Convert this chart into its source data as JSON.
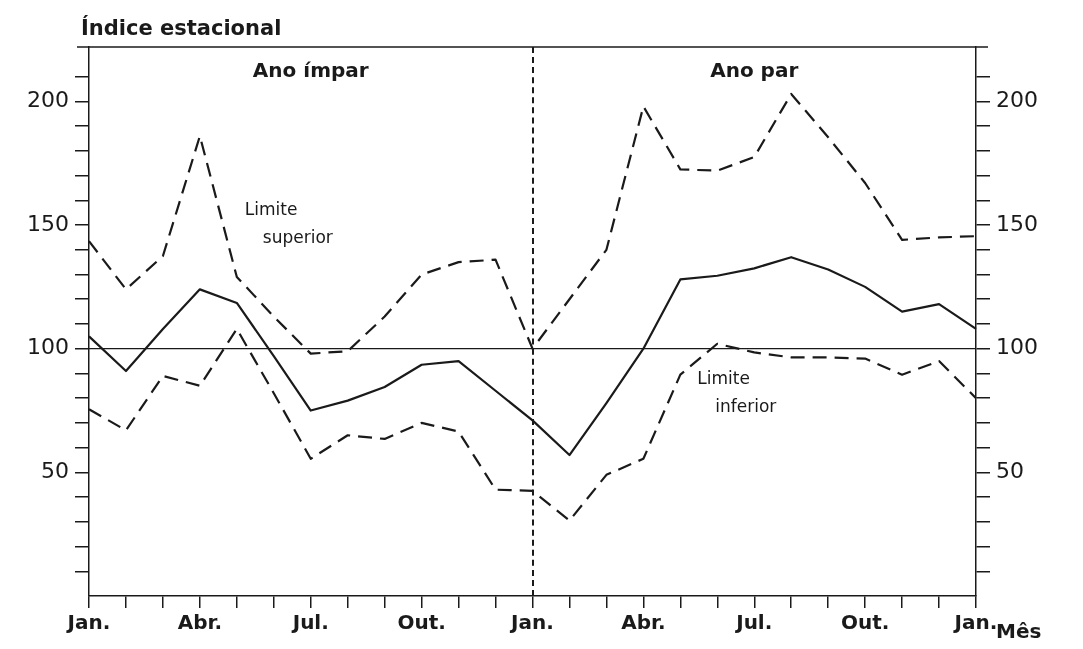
{
  "chart_data": {
    "type": "line",
    "ylabel": "Índice estacional",
    "xlabel": "Mês",
    "categories": [
      "Jan.",
      null,
      null,
      "Abr.",
      null,
      null,
      "Jul.",
      null,
      null,
      "Out.",
      null,
      null,
      "Jan.",
      null,
      null,
      "Abr.",
      null,
      null,
      "Jul.",
      null,
      null,
      "Out.",
      null,
      null,
      "Jan."
    ],
    "series": [
      {
        "color": "#1a1a1a",
        "line_style": "solid",
        "values": [
          105,
          91,
          108,
          124,
          118.5,
          97,
          75,
          79,
          84.5,
          93.5,
          95,
          83,
          71,
          57,
          78,
          100,
          128,
          129.5,
          132.5,
          137,
          132,
          125,
          115,
          118,
          108
        ]
      },
      {
        "name": "Limite superior",
        "color": "#1a1a1a",
        "line_style": "dashed",
        "values": [
          143.5,
          124,
          137.5,
          186,
          129,
          113,
          98,
          99,
          113,
          130,
          135,
          136,
          100,
          120,
          140,
          198,
          172.5,
          172,
          177.5,
          203,
          185.5,
          167,
          144,
          145,
          145.5
        ]
      },
      {
        "name": "Limite inferior",
        "color": "#1a1a1a",
        "line_style": "dashed",
        "values": [
          75.5,
          67,
          89,
          85,
          108,
          82,
          55.5,
          65,
          63.5,
          70,
          66.5,
          43,
          42.5,
          30.5,
          49,
          55.5,
          89.5,
          102,
          98.5,
          96.5,
          96.5,
          96,
          89.5,
          95,
          80
        ]
      }
    ],
    "ylim": [
      0,
      222
    ],
    "yticks": [
      {
        "value": 10,
        "label": null
      },
      {
        "value": 20,
        "label": null
      },
      {
        "value": 30,
        "label": null
      },
      {
        "value": 40,
        "label": null
      },
      50,
      {
        "value": 60,
        "label": null
      },
      {
        "value": 70,
        "label": null
      },
      {
        "value": 80,
        "label": null
      },
      {
        "value": 90,
        "label": null
      },
      100,
      {
        "value": 110,
        "label": null
      },
      {
        "value": 120,
        "label": null
      },
      {
        "value": 130,
        "label": null
      },
      {
        "value": 140,
        "label": null
      },
      150,
      {
        "value": 160,
        "label": null
      },
      {
        "value": 170,
        "label": null
      },
      {
        "value": 180,
        "label": null
      },
      {
        "value": 190,
        "label": null
      },
      200,
      {
        "value": 210,
        "label": null
      }
    ],
    "y2lim": [
      0,
      222
    ],
    "y2ticks": [
      {
        "value": 10,
        "label": null
      },
      {
        "value": 20,
        "label": null
      },
      {
        "value": 30,
        "label": null
      },
      {
        "value": 40,
        "label": null
      },
      50,
      {
        "value": 60,
        "label": null
      },
      {
        "value": 70,
        "label": null
      },
      {
        "value": 80,
        "label": null
      },
      {
        "value": 90,
        "label": null
      },
      100,
      {
        "value": 110,
        "label": null
      },
      {
        "value": 120,
        "label": null
      },
      {
        "value": 130,
        "label": null
      },
      {
        "value": 140,
        "label": null
      },
      150,
      {
        "value": 160,
        "label": null
      },
      {
        "value": 170,
        "label": null
      },
      {
        "value": 180,
        "label": null
      },
      {
        "value": 190,
        "label": null
      },
      200,
      {
        "value": 210,
        "label": null
      }
    ],
    "ref_lines": [
      {
        "axis": "y",
        "value": 100,
        "line_style": "solid"
      }
    ],
    "annotations": [
      "Ano ímpar",
      "Ano par"
    ],
    "grid": false,
    "legend": false,
    "marker": "none"
  }
}
